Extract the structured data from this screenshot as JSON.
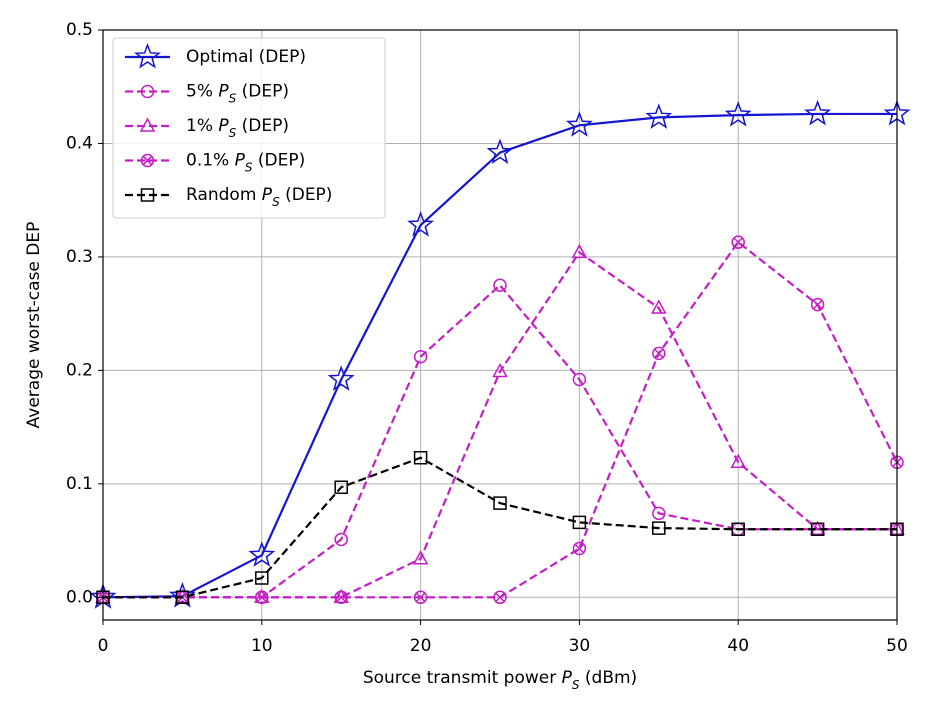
{
  "chart_data": {
    "type": "line",
    "x_label": "Source transmit power P_S (dBm)",
    "y_label": "Average worst-case DEP",
    "x": [
      0,
      5,
      10,
      15,
      20,
      25,
      30,
      35,
      40,
      45,
      50
    ],
    "series": [
      {
        "name": "Optimal (DEP)",
        "color": "#1414d2",
        "dash": false,
        "marker": "star",
        "values": [
          0,
          0.001,
          0.037,
          0.192,
          0.328,
          0.392,
          0.416,
          0.423,
          0.425,
          0.426,
          0.426
        ]
      },
      {
        "name": "5% P_S (DEP)",
        "color": "#c41ec4",
        "dash": true,
        "marker": "circle",
        "values": [
          0,
          0,
          0,
          0.051,
          0.212,
          0.275,
          0.192,
          0.074,
          0.06,
          0.06,
          0.06
        ]
      },
      {
        "name": "1% P_S (DEP)",
        "color": "#c41ec4",
        "dash": true,
        "marker": "triangle",
        "values": [
          0,
          0,
          0,
          0,
          0.034,
          0.199,
          0.304,
          0.255,
          0.119,
          0.06,
          0.06
        ]
      },
      {
        "name": "0.1% P_S (DEP)",
        "color": "#c41ec4",
        "dash": true,
        "marker": "xcircle",
        "values": [
          0,
          0,
          0,
          0,
          0,
          0,
          0.043,
          0.215,
          0.313,
          0.258,
          0.119
        ]
      },
      {
        "name": "Random P_S (DEP)",
        "color": "#000000",
        "dash": true,
        "marker": "square",
        "values": [
          0,
          0,
          0.017,
          0.097,
          0.123,
          0.083,
          0.066,
          0.061,
          0.06,
          0.06,
          0.06
        ]
      }
    ],
    "xlim": [
      0,
      50
    ],
    "xticks": [
      0,
      10,
      20,
      30,
      40,
      50
    ],
    "ylim": [
      -0.02,
      0.5
    ],
    "yticks": [
      {
        "value": 0,
        "label": "0.0"
      },
      0.1,
      0.2,
      0.3,
      0.4,
      0.5
    ],
    "grid": true,
    "legend": "upper left"
  }
}
